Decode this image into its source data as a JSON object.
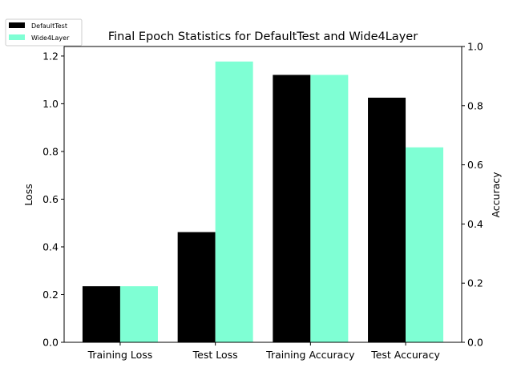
{
  "chart_data": {
    "type": "bar",
    "title": "Final Epoch Statistics for DefaultTest and Wide4Layer",
    "categories": [
      "Training Loss",
      "Test Loss",
      "Training Accuracy",
      "Test Accuracy"
    ],
    "series": [
      {
        "name": "DefaultTest",
        "color": "#000000",
        "values": [
          0.235,
          0.462,
          0.904,
          0.827
        ]
      },
      {
        "name": "Wide4Layer",
        "color": "#7fffd4",
        "values": [
          0.235,
          1.177,
          0.904,
          0.659
        ]
      }
    ],
    "left_axis": {
      "label": "Loss",
      "ylim": [
        0,
        1.24
      ],
      "ticks": [
        "0.0",
        "0.2",
        "0.4",
        "0.6",
        "0.8",
        "1.0",
        "1.2"
      ]
    },
    "right_axis": {
      "label": "Accuracy",
      "ylim": [
        0,
        1.0
      ],
      "ticks": [
        "0.0",
        "0.2",
        "0.4",
        "0.6",
        "0.8",
        "1.0"
      ]
    },
    "value_axis": [
      "left",
      "left",
      "right",
      "right"
    ],
    "legend": {
      "placement": "top-left",
      "entries": [
        "DefaultTest",
        "Wide4Layer"
      ]
    },
    "grid": false
  }
}
